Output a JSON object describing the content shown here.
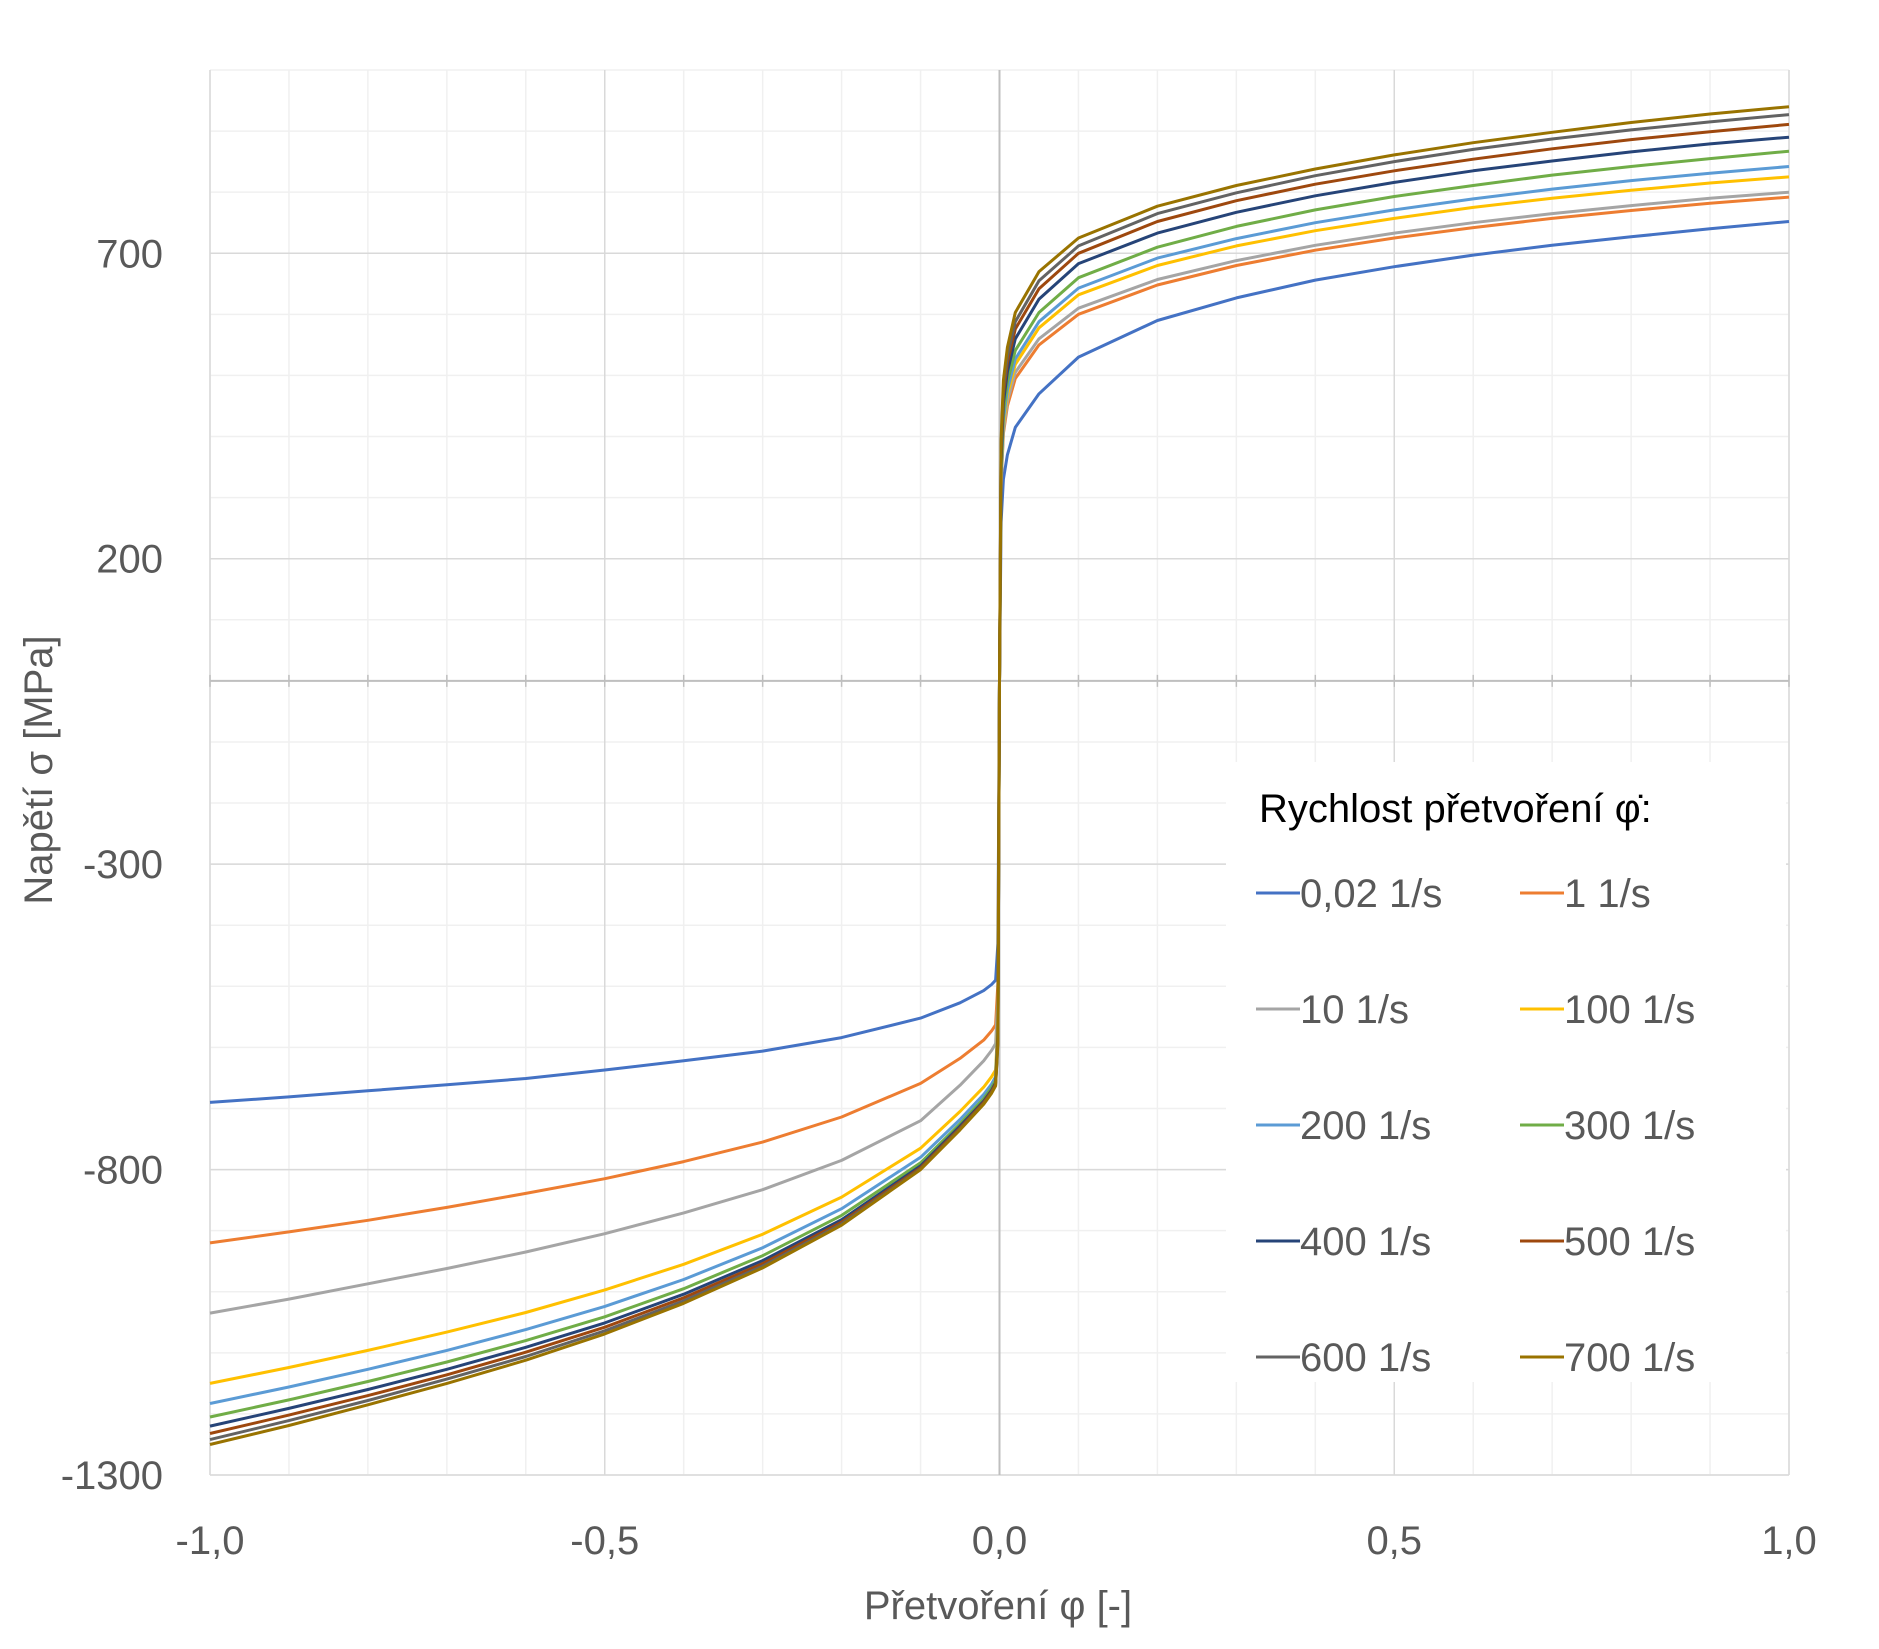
{
  "chart_data": {
    "type": "line",
    "xlabel": "Přetvoření φ [-]",
    "ylabel": "Napětí σ [MPa]",
    "xlim": [
      -1.0,
      1.0
    ],
    "ylim": [
      -1300,
      1000
    ],
    "x_major_ticks": [
      -1.0,
      -0.5,
      0.0,
      0.5,
      1.0
    ],
    "x_tick_labels": [
      "-1,0",
      "-0,5",
      "0,0",
      "0,5",
      "1,0"
    ],
    "y_major_ticks": [
      -1300,
      -800,
      -300,
      200,
      700
    ],
    "y_tick_labels": [
      "-1300",
      "-800",
      "-300",
      "200",
      "700"
    ],
    "grid": true,
    "legend": {
      "title": "Rychlost přetvoření φ̇:",
      "placement": "right",
      "columns": 2
    },
    "x": [
      -1.0,
      -0.9,
      -0.8,
      -0.7,
      -0.6,
      -0.5,
      -0.4,
      -0.3,
      -0.2,
      -0.1,
      -0.05,
      -0.02,
      -0.01,
      -0.005,
      -0.002,
      0.0,
      0.002,
      0.005,
      0.01,
      0.02,
      0.05,
      0.1,
      0.2,
      0.3,
      0.4,
      0.5,
      0.6,
      0.7,
      0.8,
      0.9,
      1.0
    ],
    "series": [
      {
        "name": "0,02 1/s",
        "color": "#4472C4",
        "values": [
          -690,
          -681,
          -671,
          -661,
          -651,
          -637,
          -622,
          -606,
          -584,
          -552,
          -527,
          -507,
          -497,
          -490,
          -430,
          0,
          260,
          330,
          370,
          415,
          470,
          530,
          590,
          627,
          656,
          678,
          697,
          713,
          727,
          740,
          752
        ]
      },
      {
        "name": "1 1/s",
        "color": "#ED7D31",
        "values": [
          -920,
          -902,
          -883,
          -862,
          -839,
          -815,
          -787,
          -755,
          -714,
          -659,
          -618,
          -588,
          -573,
          -563,
          -495,
          0,
          320,
          405,
          450,
          495,
          550,
          600,
          648,
          680,
          705,
          725,
          742,
          757,
          770,
          782,
          792
        ]
      },
      {
        "name": "10 1/s",
        "color": "#A5A5A5",
        "values": [
          -1035,
          -1012,
          -987,
          -962,
          -935,
          -905,
          -871,
          -833,
          -785,
          -720,
          -662,
          -622,
          -605,
          -594,
          -520,
          0,
          325,
          410,
          458,
          505,
          560,
          610,
          657,
          688,
          713,
          733,
          750,
          765,
          778,
          790,
          800
        ]
      },
      {
        "name": "100 1/s",
        "color": "#FFC000",
        "values": [
          -1150,
          -1124,
          -1096,
          -1066,
          -1034,
          -997,
          -955,
          -906,
          -845,
          -765,
          -705,
          -665,
          -648,
          -637,
          -560,
          0,
          330,
          420,
          468,
          518,
          578,
          632,
          680,
          712,
          737,
          757,
          775,
          790,
          803,
          815,
          825
        ]
      },
      {
        "name": "200 1/s",
        "color": "#5B9BD5",
        "values": [
          -1183,
          -1156,
          -1127,
          -1096,
          -1062,
          -1024,
          -980,
          -928,
          -864,
          -780,
          -718,
          -677,
          -660,
          -648,
          -570,
          0,
          335,
          428,
          476,
          527,
          588,
          643,
          692,
          724,
          750,
          771,
          789,
          805,
          819,
          831,
          842
        ]
      },
      {
        "name": "300 1/s",
        "color": "#70AD47",
        "values": [
          -1205,
          -1177,
          -1147,
          -1115,
          -1080,
          -1041,
          -995,
          -941,
          -875,
          -789,
          -725,
          -684,
          -666,
          -654,
          -575,
          0,
          345,
          440,
          489,
          541,
          603,
          660,
          710,
          744,
          771,
          793,
          811,
          828,
          842,
          855,
          867
        ]
      },
      {
        "name": "400 1/s",
        "color": "#264478",
        "values": [
          -1220,
          -1191,
          -1160,
          -1127,
          -1091,
          -1051,
          -1004,
          -949,
          -882,
          -794,
          -729,
          -688,
          -670,
          -658,
          -580,
          0,
          360,
          455,
          506,
          560,
          625,
          683,
          733,
          767,
          794,
          816,
          835,
          851,
          866,
          879,
          890
        ]
      },
      {
        "name": "500 1/s",
        "color": "#9E480E",
        "values": [
          -1232,
          -1202,
          -1170,
          -1136,
          -1099,
          -1058,
          -1010,
          -954,
          -886,
          -797,
          -732,
          -690,
          -672,
          -660,
          -585,
          0,
          375,
          470,
          521,
          576,
          642,
          700,
          752,
          786,
          813,
          835,
          854,
          871,
          886,
          899,
          911
        ]
      },
      {
        "name": "600 1/s",
        "color": "#636363",
        "values": [
          -1242,
          -1211,
          -1178,
          -1143,
          -1106,
          -1064,
          -1015,
          -958,
          -889,
          -799,
          -734,
          -692,
          -674,
          -662,
          -590,
          0,
          385,
          480,
          532,
          588,
          655,
          712,
          765,
          799,
          827,
          850,
          870,
          887,
          902,
          915,
          927
        ]
      },
      {
        "name": "700 1/s",
        "color": "#997300",
        "values": [
          -1250,
          -1219,
          -1185,
          -1150,
          -1112,
          -1069,
          -1019,
          -961,
          -891,
          -800,
          -735,
          -693,
          -675,
          -663,
          -595,
          0,
          395,
          492,
          546,
          603,
          670,
          725,
          777,
          811,
          838,
          861,
          881,
          898,
          914,
          928,
          940
        ]
      }
    ]
  }
}
